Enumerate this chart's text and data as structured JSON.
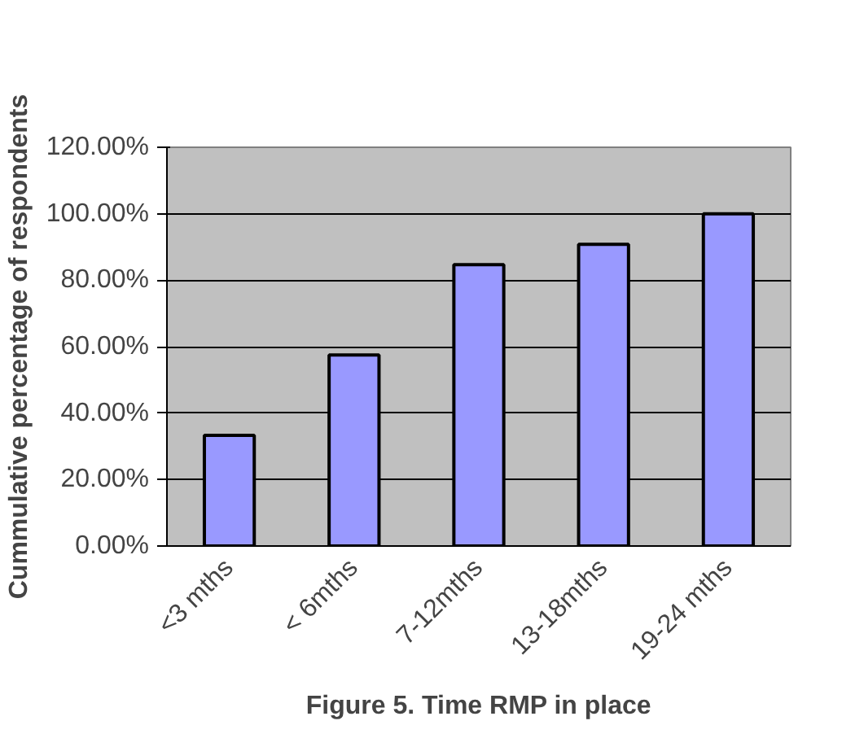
{
  "chart_data": {
    "type": "bar",
    "title": "Figure 5. Time RMP in place",
    "ylabel": "Cummulative percentage of respondents",
    "categories": [
      "<3 mths",
      "< 6mths",
      "7-12mths",
      "13-18mths",
      "19-24 mths"
    ],
    "values": [
      33.3,
      57.5,
      84.7,
      90.8,
      100
    ],
    "color": "#9999ff",
    "ylim": [
      0,
      120
    ],
    "yticks": [
      {
        "value": 0,
        "label": "0.00%"
      },
      {
        "value": 20,
        "label": "20.00%"
      },
      {
        "value": 40,
        "label": "40.00%"
      },
      {
        "value": 60,
        "label": "60.00%"
      },
      {
        "value": 80,
        "label": "80.00%"
      },
      {
        "value": 100,
        "label": "100.00%"
      },
      {
        "value": 120,
        "label": "120.00%"
      }
    ],
    "grid": "y"
  }
}
